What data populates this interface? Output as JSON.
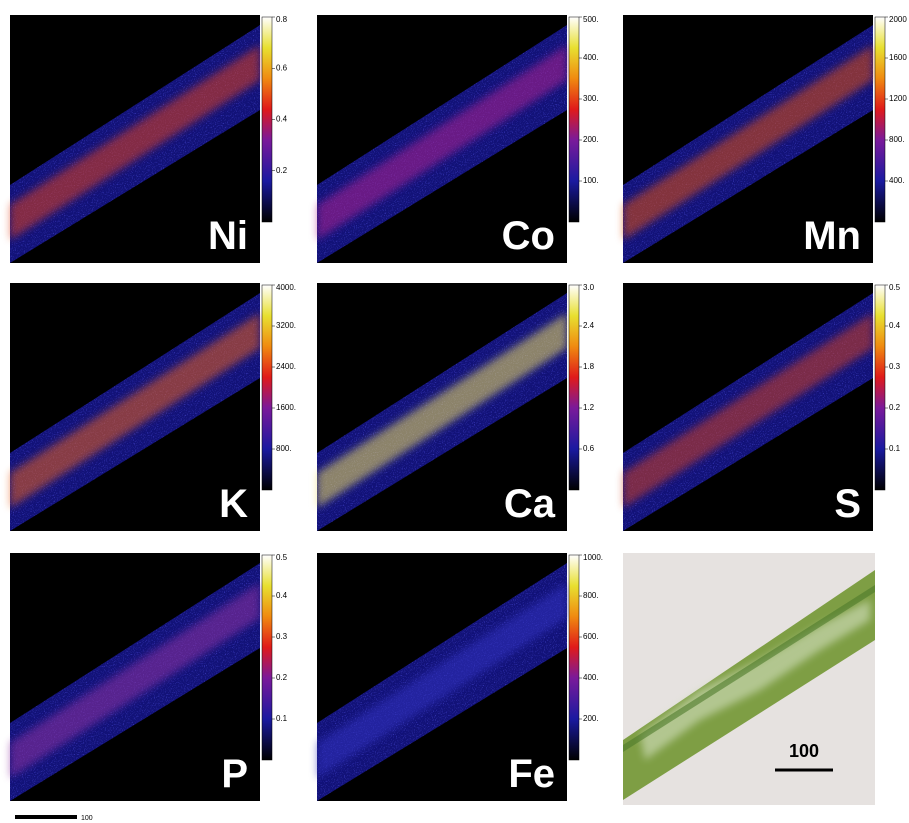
{
  "panels": [
    {
      "label": "Ni",
      "colorbar_ticks": [
        "0.2",
        "0.4",
        "0.6",
        "0.8"
      ]
    },
    {
      "label": "Co",
      "colorbar_ticks": [
        "100.",
        "200.",
        "300.",
        "400.",
        "500."
      ]
    },
    {
      "label": "Mn",
      "colorbar_ticks": [
        "400.",
        "800.",
        "1200",
        "1600",
        "2000"
      ]
    },
    {
      "label": "K",
      "colorbar_ticks": [
        "800.",
        "1600.",
        "2400.",
        "3200.",
        "4000."
      ]
    },
    {
      "label": "Ca",
      "colorbar_ticks": [
        "0.6",
        "1.2",
        "1.8",
        "2.4",
        "3.0"
      ]
    },
    {
      "label": "S",
      "colorbar_ticks": [
        "0.1",
        "0.2",
        "0.3",
        "0.4",
        "0.5"
      ]
    },
    {
      "label": "P",
      "colorbar_ticks": [
        "0.1",
        "0.2",
        "0.3",
        "0.4",
        "0.5"
      ]
    },
    {
      "label": "Fe",
      "colorbar_ticks": [
        "200.",
        "400.",
        "600.",
        "800.",
        "1000."
      ]
    }
  ],
  "micrograph": {
    "scale_label": "100"
  },
  "scale_bar": {
    "label": "100"
  }
}
